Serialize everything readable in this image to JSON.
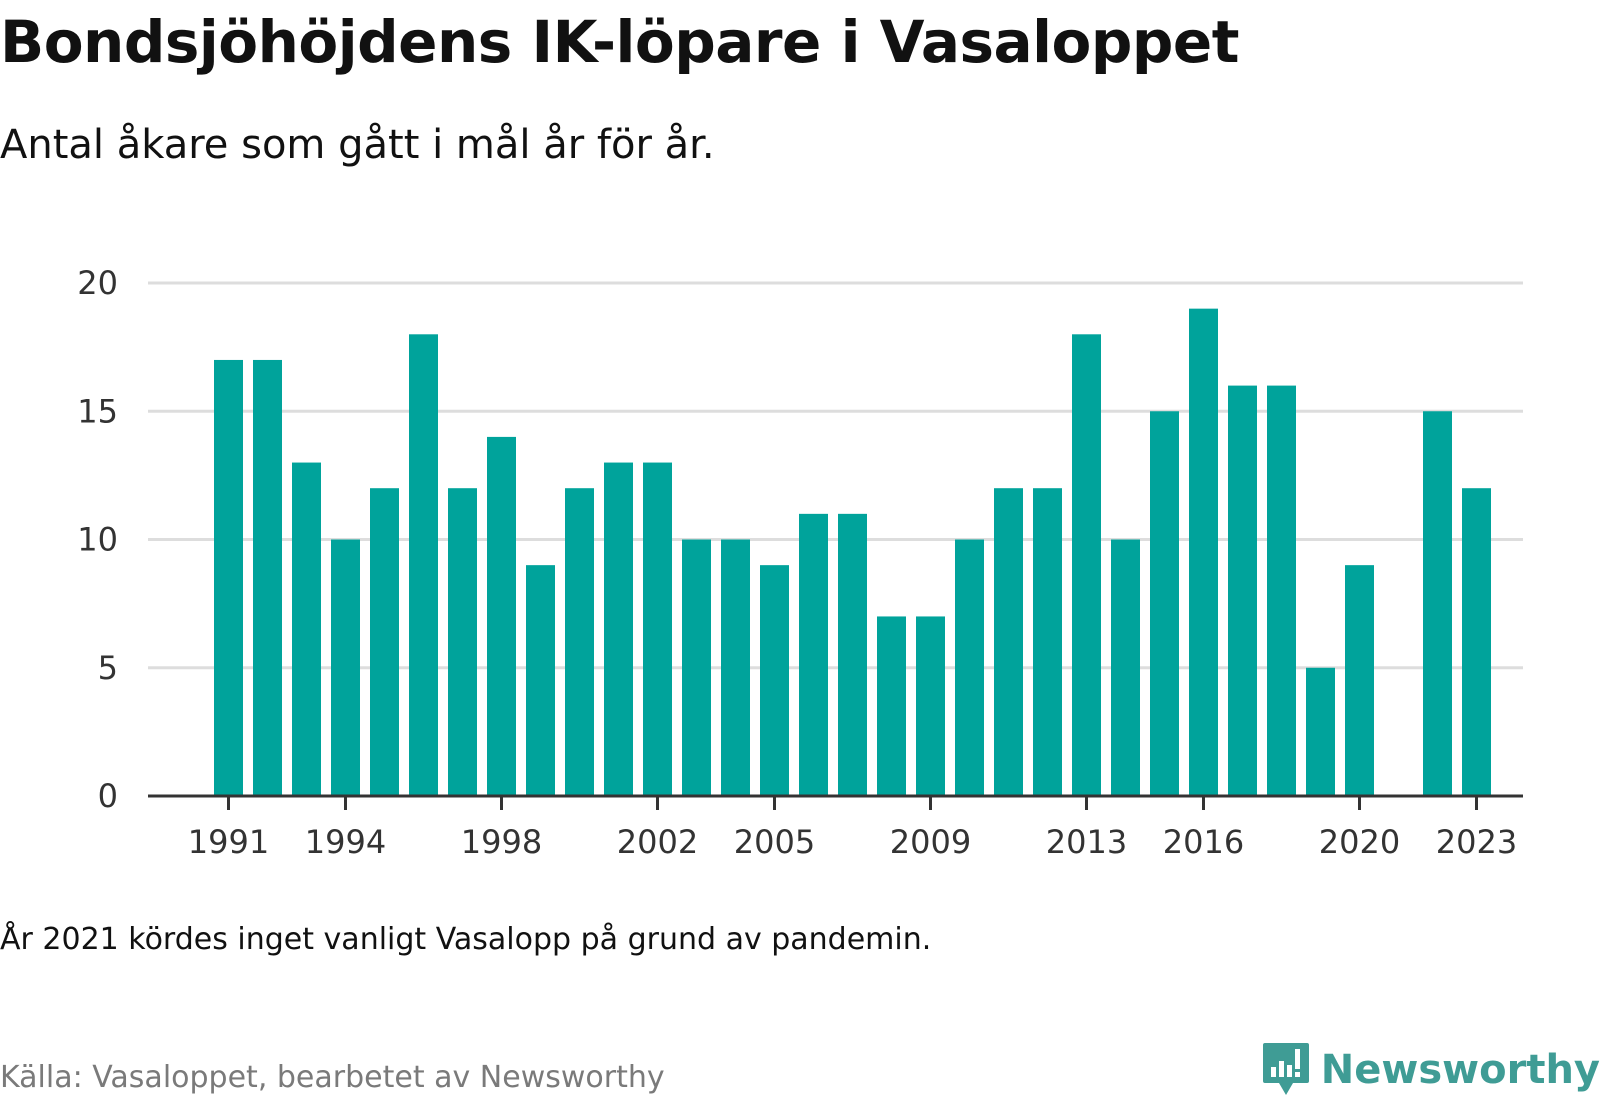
{
  "title": "Bondsjöhöjdens IK-löpare i Vasaloppet",
  "subtitle": "Antal åkare som gått i mål år för år.",
  "note": "År 2021 kördes inget vanligt Vasalopp på grund av pandemin.",
  "source": "Källa: Vasaloppet, bearbetet av Newsworthy",
  "brand": {
    "name": "Newsworthy",
    "icon": "newsworthy-logo-icon"
  },
  "colors": {
    "bar": "#00a39b",
    "grid": "#dddddd",
    "axis": "#333333",
    "brand": "#3f9c95"
  },
  "chart_data": {
    "type": "bar",
    "title": "Bondsjöhöjdens IK-löpare i Vasaloppet",
    "subtitle": "Antal åkare som gått i mål år för år.",
    "xlabel": "",
    "ylabel": "",
    "x": [
      1991,
      1992,
      1993,
      1994,
      1995,
      1996,
      1997,
      1998,
      1999,
      2000,
      2001,
      2002,
      2003,
      2004,
      2005,
      2006,
      2007,
      2008,
      2009,
      2010,
      2011,
      2012,
      2013,
      2014,
      2015,
      2016,
      2017,
      2018,
      2019,
      2020,
      2021,
      2022,
      2023
    ],
    "values": [
      17,
      17,
      13,
      10,
      12,
      18,
      12,
      14,
      9,
      12,
      13,
      13,
      10,
      10,
      9,
      11,
      11,
      7,
      7,
      10,
      12,
      12,
      18,
      10,
      15,
      19,
      16,
      16,
      5,
      9,
      null,
      15,
      12
    ],
    "x_ticks": [
      1991,
      1994,
      1998,
      2002,
      2005,
      2009,
      2013,
      2016,
      2020,
      2023
    ],
    "y_ticks": [
      0,
      5,
      10,
      15,
      20
    ],
    "ylim": [
      0,
      20
    ],
    "grid": true,
    "legend": "none"
  }
}
